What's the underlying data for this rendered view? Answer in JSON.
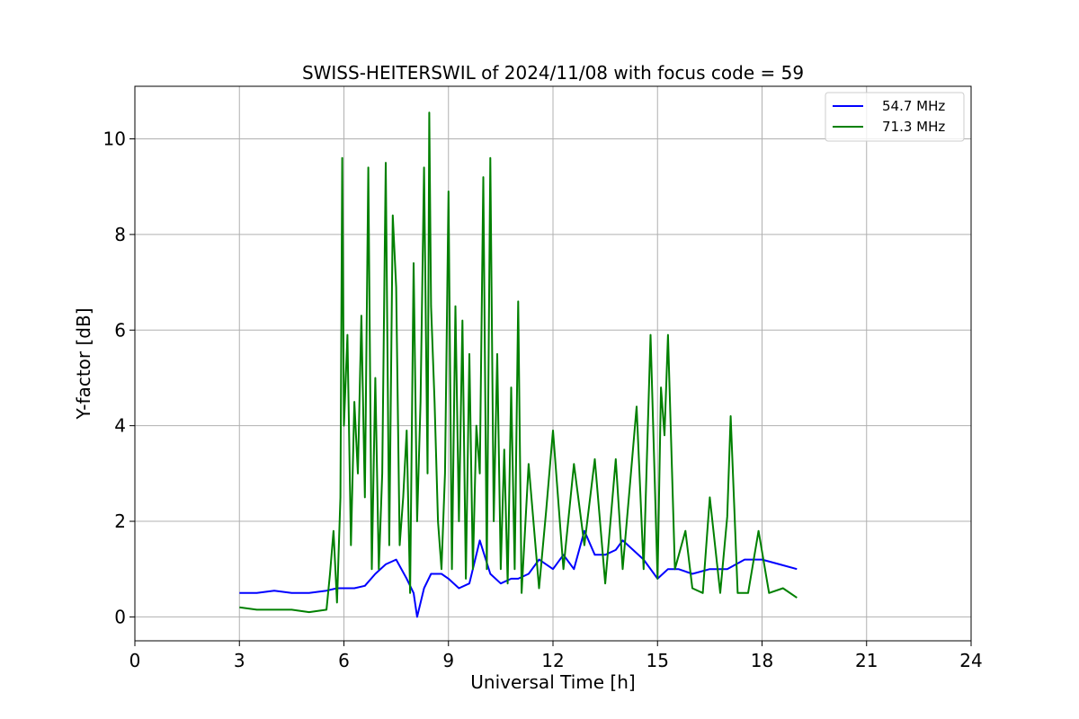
{
  "chart_data": {
    "type": "line",
    "title": "SWISS-HEITERSWIL of 2024/11/08 with focus code = 59",
    "xlabel": "Universal Time [h]",
    "ylabel": "Y-factor [dB]",
    "xlim": [
      0,
      24
    ],
    "ylim": [
      -0.5,
      11.1
    ],
    "xticks": [
      0,
      3,
      6,
      9,
      12,
      15,
      18,
      21,
      24
    ],
    "yticks": [
      0,
      2,
      4,
      6,
      8,
      10
    ],
    "grid": true,
    "legend_position": "top-right",
    "series": [
      {
        "name": "54.7 MHz",
        "color": "#0000ff",
        "x": [
          3.0,
          3.5,
          4.0,
          4.5,
          5.0,
          5.5,
          5.8,
          6.0,
          6.3,
          6.6,
          6.9,
          7.2,
          7.5,
          7.8,
          8.0,
          8.1,
          8.3,
          8.5,
          8.8,
          9.0,
          9.3,
          9.6,
          9.9,
          10.2,
          10.5,
          10.8,
          11.0,
          11.3,
          11.6,
          12.0,
          12.3,
          12.6,
          12.9,
          13.2,
          13.5,
          13.8,
          14.0,
          14.3,
          14.6,
          15.0,
          15.3,
          15.6,
          16.0,
          16.5,
          17.0,
          17.5,
          18.0,
          18.5,
          19.0
        ],
        "y": [
          0.5,
          0.5,
          0.55,
          0.5,
          0.5,
          0.55,
          0.6,
          0.6,
          0.6,
          0.65,
          0.9,
          1.1,
          1.2,
          0.8,
          0.5,
          0.0,
          0.6,
          0.9,
          0.9,
          0.8,
          0.6,
          0.7,
          1.6,
          0.9,
          0.7,
          0.8,
          0.8,
          0.9,
          1.2,
          1.0,
          1.3,
          1.0,
          1.8,
          1.3,
          1.3,
          1.4,
          1.6,
          1.4,
          1.2,
          0.8,
          1.0,
          1.0,
          0.9,
          1.0,
          1.0,
          1.2,
          1.2,
          1.1,
          1.0
        ]
      },
      {
        "name": "71.3 MHz",
        "color": "#008000",
        "x": [
          3.0,
          3.5,
          4.0,
          4.5,
          5.0,
          5.5,
          5.6,
          5.7,
          5.8,
          5.9,
          5.95,
          6.0,
          6.1,
          6.2,
          6.3,
          6.4,
          6.5,
          6.6,
          6.7,
          6.8,
          6.9,
          7.0,
          7.1,
          7.2,
          7.3,
          7.4,
          7.5,
          7.6,
          7.7,
          7.8,
          7.9,
          8.0,
          8.1,
          8.2,
          8.3,
          8.4,
          8.45,
          8.5,
          8.6,
          8.7,
          8.8,
          8.9,
          9.0,
          9.1,
          9.2,
          9.3,
          9.4,
          9.5,
          9.6,
          9.7,
          9.8,
          9.9,
          10.0,
          10.1,
          10.2,
          10.3,
          10.4,
          10.5,
          10.6,
          10.7,
          10.8,
          10.9,
          11.0,
          11.1,
          11.3,
          11.6,
          11.8,
          12.0,
          12.3,
          12.6,
          12.9,
          13.2,
          13.5,
          13.8,
          14.0,
          14.2,
          14.4,
          14.6,
          14.8,
          15.0,
          15.1,
          15.2,
          15.3,
          15.5,
          15.8,
          16.0,
          16.3,
          16.5,
          16.8,
          17.0,
          17.1,
          17.3,
          17.6,
          17.9,
          18.2,
          18.6,
          19.0
        ],
        "y": [
          0.2,
          0.15,
          0.15,
          0.15,
          0.1,
          0.15,
          0.9,
          1.8,
          0.3,
          2.5,
          9.6,
          4.0,
          5.9,
          1.5,
          4.5,
          3.0,
          6.3,
          2.5,
          9.4,
          1.0,
          5.0,
          1.0,
          3.0,
          9.5,
          1.5,
          8.4,
          6.9,
          1.5,
          2.5,
          3.9,
          0.5,
          7.4,
          2.0,
          4.5,
          9.4,
          3.0,
          10.55,
          6.5,
          4.5,
          2.0,
          1.0,
          3.0,
          8.9,
          1.0,
          6.5,
          2.0,
          6.2,
          0.8,
          5.5,
          1.0,
          4.0,
          3.0,
          9.2,
          1.0,
          9.6,
          2.0,
          5.5,
          1.0,
          3.5,
          0.7,
          4.8,
          1.0,
          6.6,
          0.5,
          3.2,
          0.6,
          2.2,
          3.9,
          1.0,
          3.2,
          1.5,
          3.3,
          0.7,
          3.3,
          1.0,
          2.7,
          4.4,
          1.0,
          5.9,
          0.8,
          4.8,
          3.8,
          5.9,
          1.0,
          1.8,
          0.6,
          0.5,
          2.5,
          0.5,
          2.1,
          4.2,
          0.5,
          0.5,
          1.8,
          0.5,
          0.6,
          0.4
        ]
      }
    ]
  }
}
